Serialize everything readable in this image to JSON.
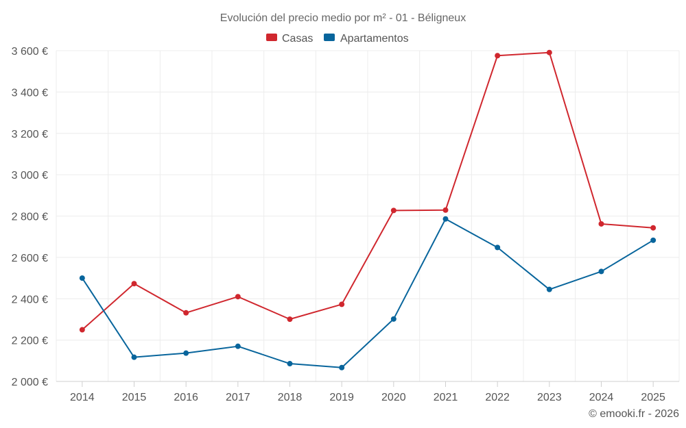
{
  "chart_data": {
    "type": "line",
    "title": "Evolución del precio medio por m² - 01 - Béligneux",
    "categories": [
      "2014",
      "2015",
      "2016",
      "2017",
      "2018",
      "2019",
      "2020",
      "2021",
      "2022",
      "2023",
      "2024",
      "2025"
    ],
    "series": [
      {
        "name": "Casas",
        "color": "#d0272e",
        "values": [
          2250,
          2473,
          2332,
          2410,
          2301,
          2373,
          2827,
          2829,
          3576,
          3591,
          2762,
          2743
        ]
      },
      {
        "name": "Apartamentos",
        "color": "#08659c",
        "values": [
          2500,
          2117,
          2137,
          2170,
          2086,
          2067,
          2302,
          2786,
          2648,
          2445,
          2532,
          2683
        ]
      }
    ],
    "ylim": [
      2000,
      3600
    ],
    "yticks": [
      2000,
      2200,
      2400,
      2600,
      2800,
      3000,
      3200,
      3400,
      3600
    ],
    "ytick_labels": [
      "2 000 €",
      "2 200 €",
      "2 400 €",
      "2 600 €",
      "2 800 €",
      "3 000 €",
      "3 200 €",
      "3 400 €",
      "3 600 €"
    ],
    "xlabel": "",
    "ylabel": "",
    "grid": true,
    "legend_position": "top-center",
    "credit": "© emooki.fr - 2026"
  }
}
